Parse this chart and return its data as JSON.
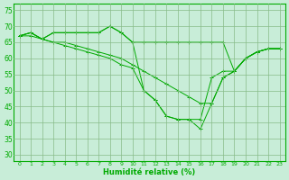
{
  "title": "",
  "xlabel": "Humidité relative (%)",
  "ylabel": "",
  "xlim": [
    -0.5,
    23.5
  ],
  "ylim": [
    28,
    77
  ],
  "yticks": [
    30,
    35,
    40,
    45,
    50,
    55,
    60,
    65,
    70,
    75
  ],
  "background_color": "#c8edd8",
  "grid_color": "#88bb88",
  "line_color": "#00aa00",
  "lines": [
    [
      67,
      68,
      66,
      68,
      68,
      68,
      68,
      68,
      70,
      68,
      65,
      65,
      65,
      65,
      65,
      65,
      65,
      65,
      65,
      56,
      60,
      62,
      63,
      63
    ],
    [
      67,
      68,
      66,
      68,
      68,
      68,
      68,
      68,
      70,
      68,
      65,
      50,
      47,
      42,
      41,
      41,
      41,
      54,
      56,
      56,
      60,
      62,
      63,
      63
    ],
    [
      67,
      68,
      66,
      65,
      65,
      64,
      63,
      62,
      61,
      60,
      58,
      56,
      54,
      52,
      50,
      48,
      46,
      46,
      54,
      56,
      60,
      62,
      63,
      63
    ],
    [
      67,
      67,
      66,
      65,
      64,
      63,
      62,
      61,
      60,
      58,
      57,
      50,
      47,
      42,
      41,
      41,
      38,
      46,
      54,
      56,
      60,
      62,
      63,
      63
    ]
  ]
}
